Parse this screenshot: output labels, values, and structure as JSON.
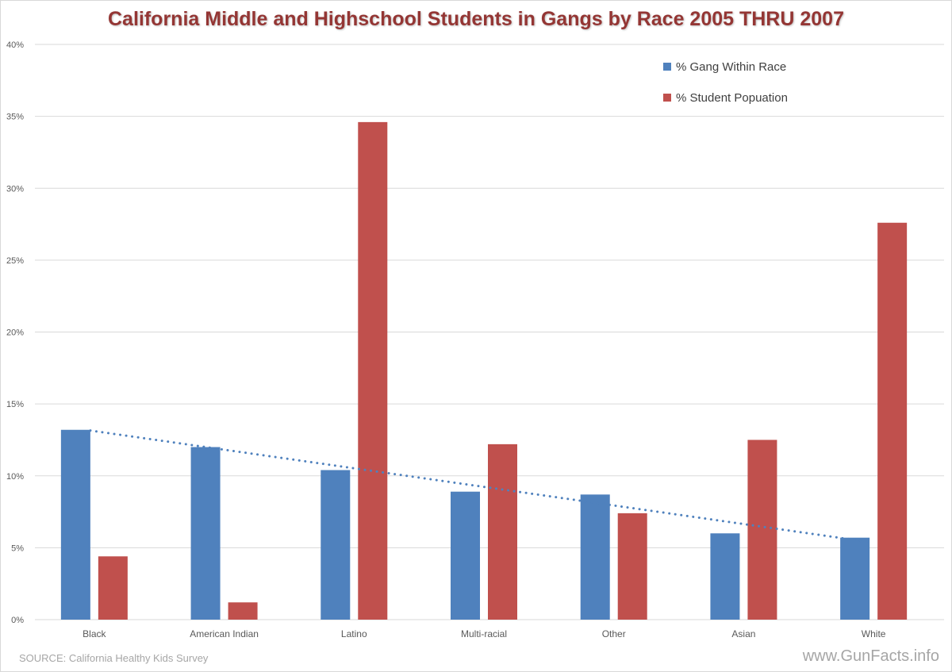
{
  "chart_data": {
    "type": "bar",
    "title": "California Middle and Highschool Students in Gangs by Race 2005 THRU 2007",
    "xlabel": "",
    "ylabel": "",
    "ylim": [
      0,
      40
    ],
    "yticks": [
      0,
      5,
      10,
      15,
      20,
      25,
      30,
      35,
      40
    ],
    "ytick_labels": [
      "0%",
      "5%",
      "10%",
      "15%",
      "20%",
      "25%",
      "30%",
      "35%",
      "40%"
    ],
    "grid": true,
    "legend_position": "top-right",
    "categories": [
      "Black",
      "American Indian",
      "Latino",
      "Multi-racial",
      "Other",
      "Asian",
      "White"
    ],
    "series": [
      {
        "name": "% Gang Within Race",
        "color": "#4f81bd",
        "values": [
          13.2,
          12.0,
          10.4,
          8.9,
          8.7,
          6.0,
          5.7
        ]
      },
      {
        "name": "% Student Popuation",
        "color": "#c0504d",
        "values": [
          4.4,
          1.2,
          34.6,
          12.2,
          7.4,
          12.5,
          27.6
        ]
      }
    ],
    "trendline": {
      "series": "% Gang Within Race",
      "type": "linear",
      "style": "dotted",
      "color": "#4f81bd"
    },
    "source_note": "SOURCE: California Healthy Kids Survey",
    "watermark": "www.GunFacts.info"
  }
}
